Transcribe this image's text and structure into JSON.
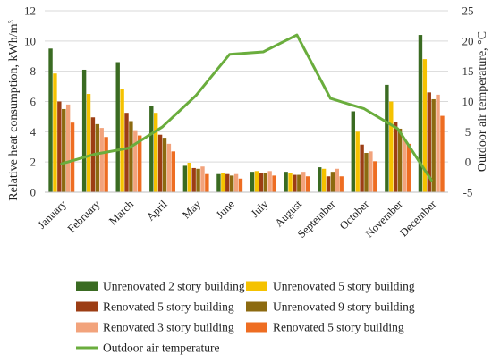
{
  "chart_data": {
    "type": "bar",
    "categories": [
      "January",
      "February",
      "March",
      "April",
      "May",
      "June",
      "July",
      "August",
      "September",
      "October",
      "November",
      "December"
    ],
    "series": [
      {
        "name": "Unrenovated 2 story building",
        "color": "#3a6b22",
        "values": [
          9.5,
          8.1,
          8.6,
          5.7,
          1.75,
          1.2,
          1.35,
          1.35,
          1.65,
          5.35,
          7.1,
          10.4
        ]
      },
      {
        "name": "Unrenovated 5 story building",
        "color": "#f5c200",
        "values": [
          7.85,
          6.5,
          6.85,
          5.25,
          1.95,
          1.25,
          1.4,
          1.3,
          1.55,
          4.0,
          6.0,
          8.8
        ]
      },
      {
        "name": "Renovated 5 story building",
        "color": "#9c3d14",
        "values": [
          6.0,
          4.95,
          5.25,
          3.8,
          1.6,
          1.2,
          1.25,
          1.15,
          1.05,
          3.15,
          4.65,
          6.6
        ]
      },
      {
        "name": "Unrenovated 9 story building",
        "color": "#8c6a10",
        "values": [
          5.5,
          4.5,
          4.7,
          3.6,
          1.55,
          1.1,
          1.25,
          1.15,
          1.35,
          2.6,
          4.2,
          6.15
        ]
      },
      {
        "name": "Renovated 3 story building",
        "color": "#f2a37c",
        "values": [
          5.8,
          4.25,
          4.1,
          3.2,
          1.7,
          1.2,
          1.4,
          1.35,
          1.55,
          2.7,
          3.5,
          6.45
        ]
      },
      {
        "name": "Renovated 5 story building",
        "color": "#ee6d22",
        "values": [
          4.6,
          3.65,
          3.75,
          2.7,
          1.2,
          0.9,
          1.1,
          1.05,
          1.05,
          2.05,
          3.2,
          5.05
        ]
      }
    ],
    "line_series": {
      "name": "Outdoor air temperature",
      "color": "#6aad3d",
      "values": [
        -0.3,
        1.3,
        2.3,
        5.8,
        11.0,
        17.8,
        18.2,
        21.0,
        10.5,
        8.8,
        5.5,
        -3.0
      ]
    },
    "ylabel": "Relative heat consumption, kWh/m³",
    "y2label": "Outdoor air temperature, °C",
    "ylim": [
      0,
      12
    ],
    "y2lim": [
      -5,
      25
    ],
    "yticks": [
      "0",
      "2",
      "4",
      "6",
      "8",
      "10",
      "12"
    ],
    "y2ticks": [
      "-5",
      "0",
      "5",
      "10",
      "15",
      "20",
      "25"
    ],
    "grid": true,
    "legend_placement": "bottom"
  }
}
